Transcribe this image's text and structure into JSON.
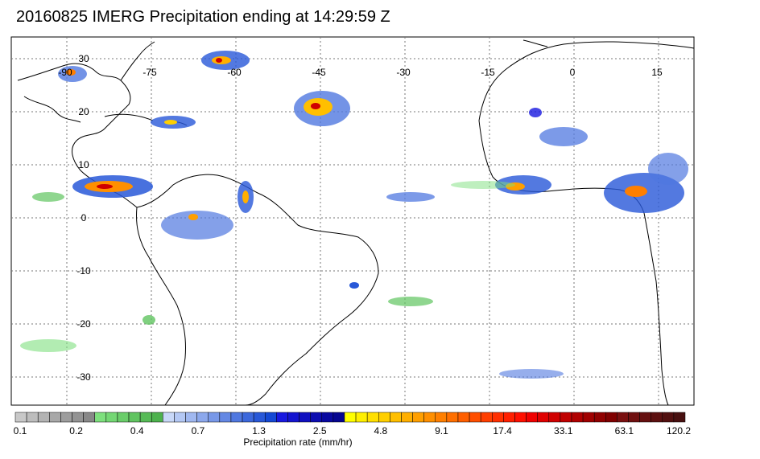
{
  "title": "20160825 IMERG Precipitation ending at 14:29:59 Z",
  "map": {
    "lon_ticks": [
      "-90",
      "-75",
      "-60",
      "-45",
      "-30",
      "-15",
      "0",
      "15"
    ],
    "lat_ticks": [
      "30",
      "20",
      "10",
      "0",
      "-10",
      "-20",
      "-30"
    ]
  },
  "colorbar": {
    "title": "Precipitation rate (mm/hr)",
    "labels": [
      "0.1",
      "0.2",
      "0.4",
      "0.7",
      "1.3",
      "2.5",
      "4.8",
      "9.1",
      "17.4",
      "33.1",
      "63.1",
      "120.2"
    ],
    "colors": [
      "#c8c8c8",
      "#bdbdbd",
      "#b3b3b3",
      "#a8a8a8",
      "#9d9d9d",
      "#939393",
      "#888888",
      "#7ee07e",
      "#74d774",
      "#6acd6a",
      "#60c460",
      "#57bb57",
      "#4db24d",
      "#c8d8f8",
      "#b4c8f4",
      "#a0b8f0",
      "#8ca8ec",
      "#7898e8",
      "#6488e4",
      "#5078e0",
      "#3c68dc",
      "#2858d8",
      "#1448d4",
      "#1818e0",
      "#1414d0",
      "#1010c0",
      "#0c0cb0",
      "#0808a0",
      "#050590",
      "#ffff00",
      "#ffef00",
      "#ffdf00",
      "#ffcf00",
      "#ffbf00",
      "#ffaf00",
      "#ff9f00",
      "#ff8f00",
      "#ff7f00",
      "#ff6f00",
      "#ff5f00",
      "#ff4f00",
      "#ff3f00",
      "#ff2f00",
      "#ff1f00",
      "#ff0f00",
      "#f00000",
      "#e00000",
      "#d00000",
      "#c00000",
      "#b00000",
      "#a00000",
      "#900000",
      "#800000",
      "#7a1010",
      "#701010",
      "#661010",
      "#5c1010",
      "#521010",
      "#481010"
    ]
  }
}
